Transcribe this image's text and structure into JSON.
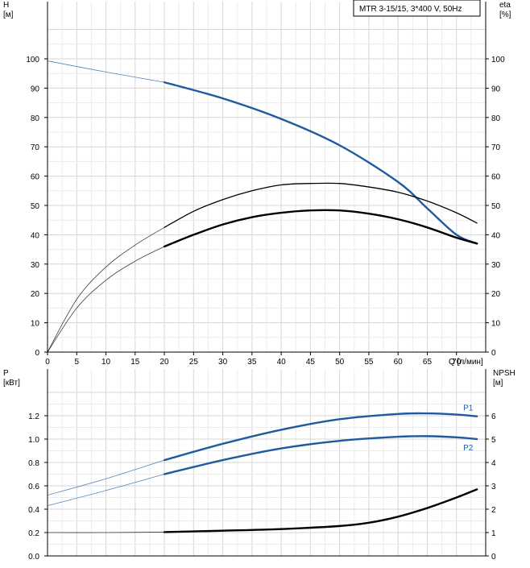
{
  "legend_text": "MTR 3-15/15, 3*400 V, 50Hz",
  "chart_data": [
    {
      "type": "line",
      "panel": "top",
      "left_axis": {
        "title_lines": [
          "H",
          "[м]"
        ],
        "range": [
          0,
          100
        ],
        "ticks": [
          0,
          10,
          20,
          30,
          40,
          50,
          60,
          70,
          80,
          90,
          100
        ]
      },
      "right_axis": {
        "title_lines": [
          "eta",
          "[%]"
        ],
        "range": [
          0,
          100
        ],
        "ticks": [
          0,
          10,
          20,
          30,
          40,
          50,
          60,
          70,
          80,
          90,
          100
        ]
      },
      "x_axis": {
        "range": [
          0,
          75
        ],
        "ticks": [
          0,
          5,
          10,
          15,
          20,
          25,
          30,
          35,
          40,
          45,
          50,
          55,
          60,
          65,
          70
        ],
        "label": "Q [л/мин]"
      },
      "grid": true,
      "series": [
        {
          "key": "H",
          "axis": "left",
          "color": "#1f5aa0",
          "points": [
            [
              0,
              99.3
            ],
            [
              10,
              95.5
            ],
            [
              20,
              92
            ],
            [
              30,
              86.5
            ],
            [
              40,
              79.5
            ],
            [
              50,
              70.5
            ],
            [
              60,
              58
            ],
            [
              65,
              49
            ],
            [
              70,
              40
            ],
            [
              73.5,
              37
            ]
          ],
          "operating_range": [
            20,
            73.5
          ]
        },
        {
          "key": "eta_upper",
          "axis": "right",
          "color": "#000000",
          "points": [
            [
              0,
              0
            ],
            [
              5,
              18
            ],
            [
              10,
              29
            ],
            [
              15,
              36.5
            ],
            [
              20,
              42.5
            ],
            [
              25,
              48
            ],
            [
              30,
              52
            ],
            [
              35,
              55
            ],
            [
              40,
              57
            ],
            [
              45,
              57.5
            ],
            [
              50,
              57.5
            ],
            [
              55,
              56.3
            ],
            [
              60,
              54.5
            ],
            [
              65,
              51.5
            ],
            [
              70,
              47.5
            ],
            [
              73.5,
              44
            ]
          ],
          "operating_range": [
            20,
            73.5
          ]
        },
        {
          "key": "eta_lower",
          "axis": "right",
          "color": "#000000",
          "points": [
            [
              0,
              0
            ],
            [
              5,
              15
            ],
            [
              10,
              24.5
            ],
            [
              15,
              31
            ],
            [
              20,
              36
            ],
            [
              25,
              40
            ],
            [
              30,
              43.5
            ],
            [
              35,
              46
            ],
            [
              40,
              47.5
            ],
            [
              45,
              48.3
            ],
            [
              50,
              48.3
            ],
            [
              55,
              47.2
            ],
            [
              60,
              45.3
            ],
            [
              65,
              42.5
            ],
            [
              70,
              39
            ],
            [
              73.5,
              37
            ]
          ],
          "operating_range": [
            20,
            73.5
          ]
        }
      ]
    },
    {
      "type": "line",
      "panel": "bottom",
      "left_axis": {
        "title_lines": [
          "P",
          "[кВт]"
        ],
        "range": [
          0,
          1.4
        ],
        "ticks": [
          "0.0",
          "0.2",
          "0.4",
          "0.6",
          "0.8",
          "1.0",
          "1.2"
        ]
      },
      "right_axis": {
        "title_lines": [
          "NPSH",
          "[м]"
        ],
        "range": [
          0,
          7
        ],
        "ticks": [
          0,
          1,
          2,
          3,
          4,
          5,
          6
        ]
      },
      "x_axis": {
        "range": [
          0,
          75
        ]
      },
      "grid": true,
      "series": [
        {
          "key": "P1",
          "name": "P1",
          "axis": "left",
          "color": "#1f5aa0",
          "points": [
            [
              0,
              0.52
            ],
            [
              10,
              0.66
            ],
            [
              20,
              0.82
            ],
            [
              30,
              0.96
            ],
            [
              40,
              1.08
            ],
            [
              50,
              1.17
            ],
            [
              60,
              1.215
            ],
            [
              65,
              1.22
            ],
            [
              70,
              1.21
            ],
            [
              73.5,
              1.195
            ]
          ],
          "operating_range": [
            20,
            73.5
          ]
        },
        {
          "key": "P2",
          "name": "P2",
          "axis": "left",
          "color": "#1f5aa0",
          "points": [
            [
              0,
              0.43
            ],
            [
              10,
              0.56
            ],
            [
              20,
              0.7
            ],
            [
              30,
              0.82
            ],
            [
              40,
              0.92
            ],
            [
              50,
              0.985
            ],
            [
              60,
              1.02
            ],
            [
              65,
              1.025
            ],
            [
              70,
              1.015
            ],
            [
              73.5,
              1.0
            ]
          ],
          "operating_range": [
            20,
            73.5
          ]
        },
        {
          "key": "NPSH",
          "axis": "right",
          "color": "#000000",
          "points": [
            [
              0,
              1.0
            ],
            [
              10,
              1.0
            ],
            [
              20,
              1.02
            ],
            [
              30,
              1.08
            ],
            [
              40,
              1.15
            ],
            [
              50,
              1.28
            ],
            [
              55,
              1.42
            ],
            [
              60,
              1.68
            ],
            [
              65,
              2.05
            ],
            [
              70,
              2.5
            ],
            [
              73.5,
              2.85
            ]
          ],
          "operating_range": [
            20,
            73.5
          ]
        }
      ]
    }
  ]
}
